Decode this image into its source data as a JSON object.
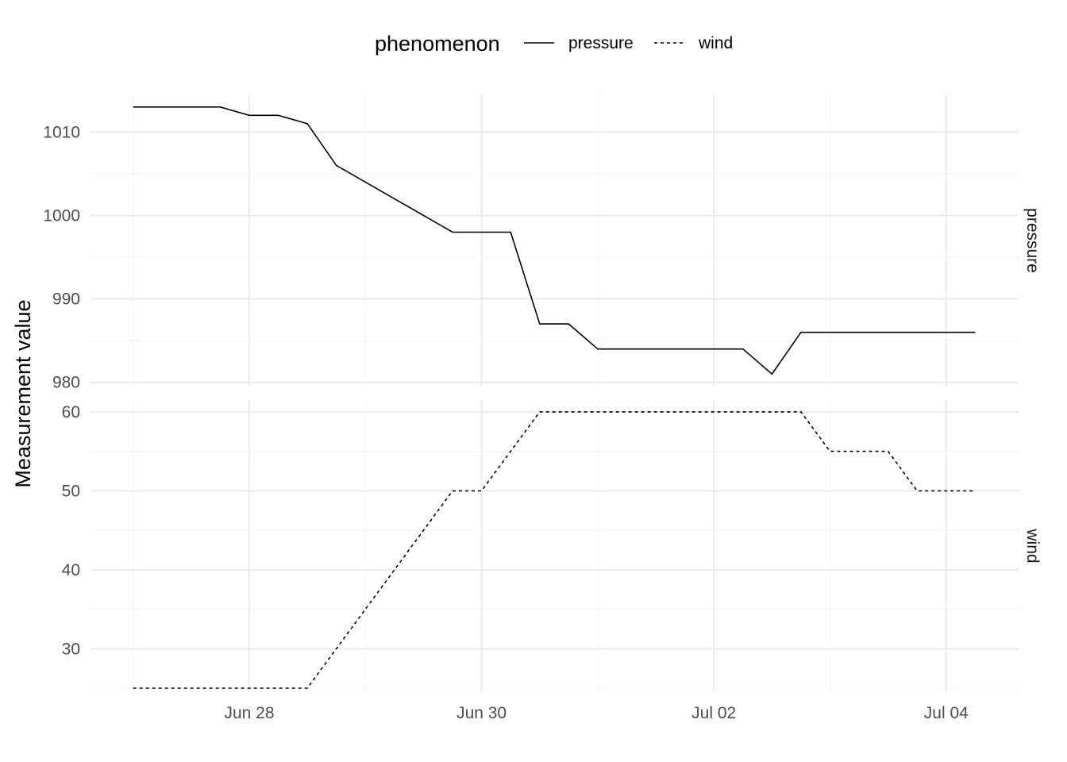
{
  "chart_data": {
    "type": "line",
    "facets": [
      "pressure",
      "wind"
    ],
    "ylabel": "Measurement value",
    "xlabel": "",
    "legend": {
      "title": "phenomenon",
      "position": "top",
      "entries": [
        {
          "name": "pressure",
          "linetype": "solid"
        },
        {
          "name": "wind",
          "linetype": "dashed"
        }
      ]
    },
    "x_ticks": [
      {
        "date": "2008-06-28",
        "label": "Jun 28"
      },
      {
        "date": "2008-06-30",
        "label": "Jun 30"
      },
      {
        "date": "2008-07-02",
        "label": "Jul 02"
      },
      {
        "date": "2008-07-04",
        "label": "Jul 04"
      }
    ],
    "grid": true,
    "panels": [
      {
        "facet": "pressure",
        "ylim": [
          979.5,
          1014.5
        ],
        "y_ticks": [
          980,
          990,
          1000,
          1010
        ],
        "series": [
          {
            "name": "pressure",
            "linetype": "solid",
            "points": [
              [
                "2008-06-27 00:00",
                1013
              ],
              [
                "2008-06-27 18:00",
                1013
              ],
              [
                "2008-06-28 00:00",
                1012
              ],
              [
                "2008-06-28 06:00",
                1012
              ],
              [
                "2008-06-28 12:00",
                1011
              ],
              [
                "2008-06-28 18:00",
                1006
              ],
              [
                "2008-06-29 18:00",
                998
              ],
              [
                "2008-06-30 06:00",
                998
              ],
              [
                "2008-06-30 12:00",
                987
              ],
              [
                "2008-06-30 18:00",
                987
              ],
              [
                "2008-07-01 00:00",
                984
              ],
              [
                "2008-07-02 06:00",
                984
              ],
              [
                "2008-07-02 12:00",
                981
              ],
              [
                "2008-07-02 18:00",
                986
              ],
              [
                "2008-07-04 06:00",
                986
              ]
            ]
          }
        ]
      },
      {
        "facet": "wind",
        "ylim": [
          24.5,
          61.5
        ],
        "y_ticks": [
          30,
          40,
          50,
          60
        ],
        "series": [
          {
            "name": "wind",
            "linetype": "dashed",
            "points": [
              [
                "2008-06-27 00:00",
                25
              ],
              [
                "2008-06-28 12:00",
                25
              ],
              [
                "2008-06-29 18:00",
                50
              ],
              [
                "2008-06-30 00:00",
                50
              ],
              [
                "2008-06-30 12:00",
                60
              ],
              [
                "2008-07-02 18:00",
                60
              ],
              [
                "2008-07-03 00:00",
                55
              ],
              [
                "2008-07-03 12:00",
                55
              ],
              [
                "2008-07-03 18:00",
                50
              ],
              [
                "2008-07-04 06:00",
                50
              ]
            ]
          }
        ]
      }
    ]
  }
}
